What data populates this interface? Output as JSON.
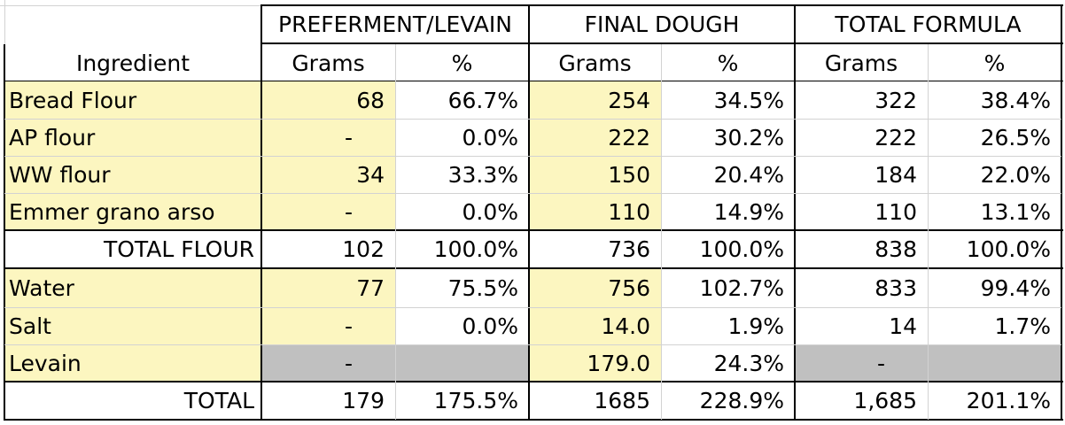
{
  "colors": {
    "yellow": "#fcf6c0",
    "gray": "#c0c0c0",
    "grid": "#d2d2d2",
    "border": "#000000"
  },
  "table": {
    "group_headers": [
      "PREFERMENT/LEVAIN",
      "FINAL DOUGH",
      "TOTAL FORMULA"
    ],
    "sub_headers": [
      "Ingredient",
      "Grams",
      "%",
      "Grams",
      "%",
      "Grams",
      "%"
    ],
    "rows": [
      {
        "name": "Bread Flour",
        "pre_g": "68",
        "pre_pct": "66.7%",
        "fin_g": "254",
        "fin_pct": "34.5%",
        "tot_g": "322",
        "tot_pct": "38.4%"
      },
      {
        "name": "AP flour",
        "pre_g": "-",
        "pre_pct": "0.0%",
        "fin_g": "222",
        "fin_pct": "30.2%",
        "tot_g": "222",
        "tot_pct": "26.5%"
      },
      {
        "name": "WW flour",
        "pre_g": "34",
        "pre_pct": "33.3%",
        "fin_g": "150",
        "fin_pct": "20.4%",
        "tot_g": "184",
        "tot_pct": "22.0%"
      },
      {
        "name": "Emmer grano arso",
        "pre_g": "-",
        "pre_pct": "0.0%",
        "fin_g": "110",
        "fin_pct": "14.9%",
        "tot_g": "110",
        "tot_pct": "13.1%"
      },
      {
        "name": "TOTAL FLOUR",
        "pre_g": "102",
        "pre_pct": "100.0%",
        "fin_g": "736",
        "fin_pct": "100.0%",
        "tot_g": "838",
        "tot_pct": "100.0%"
      },
      {
        "name": "Water",
        "pre_g": "77",
        "pre_pct": "75.5%",
        "fin_g": "756",
        "fin_pct": "102.7%",
        "tot_g": "833",
        "tot_pct": "99.4%"
      },
      {
        "name": "Salt",
        "pre_g": "-",
        "pre_pct": "0.0%",
        "fin_g": "14.0",
        "fin_pct": "1.9%",
        "tot_g": "14",
        "tot_pct": "1.7%"
      },
      {
        "name": "Levain",
        "pre_g": "-",
        "pre_pct": "",
        "fin_g": "179.0",
        "fin_pct": "24.3%",
        "tot_g": "-",
        "tot_pct": ""
      },
      {
        "name": "TOTAL",
        "pre_g": "179",
        "pre_pct": "175.5%",
        "fin_g": "1685",
        "fin_pct": "228.9%",
        "tot_g": "1,685",
        "tot_pct": "201.1%"
      }
    ]
  }
}
